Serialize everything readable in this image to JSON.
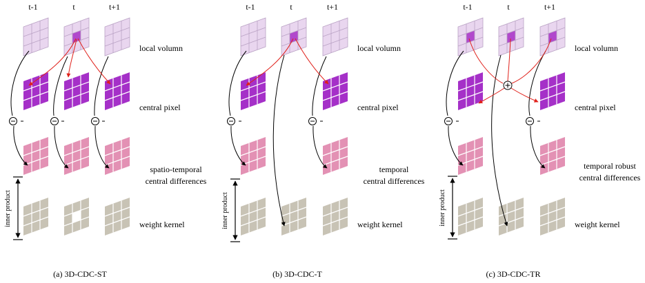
{
  "colors": {
    "local_volume": "#e9d6ef",
    "local_volume_center": "#b148cc",
    "central_pixel": "#a530c8",
    "central_difference": "#e391b4",
    "weight_kernel": "#c8c3b5",
    "grid_line": "#ffffff",
    "arrow_black": "#000000",
    "arrow_red": "#e0201a"
  },
  "panels": [
    {
      "id": "a",
      "frames": [
        "t-1",
        "t",
        "t+1"
      ],
      "labels": {
        "local_volume": "local volumn",
        "central_pixel": "central pixel",
        "differences_line1": "spatio-temporal",
        "differences_line2": "central differences",
        "weight_kernel": "weight kernel",
        "inner_product": "inner product"
      },
      "operator": "⊖",
      "caption": "(a) 3D-CDC-ST"
    },
    {
      "id": "b",
      "frames": [
        "t-1",
        "t",
        "t+1"
      ],
      "labels": {
        "local_volume": "local volumn",
        "central_pixel": "central pixel",
        "differences_line1": "temporal",
        "differences_line2": "central differences",
        "weight_kernel": "weight kernel",
        "inner_product": "inner product"
      },
      "operator": "⊖",
      "caption": "(b) 3D-CDC-T"
    },
    {
      "id": "c",
      "frames": [
        "t-1",
        "t",
        "t+1"
      ],
      "labels": {
        "local_volume": "local volumn",
        "central_pixel": "central pixel",
        "differences_line1": "temporal robust",
        "differences_line2": "central differences",
        "weight_kernel": "weight kernel",
        "inner_product": "inner product"
      },
      "operator": "⊖",
      "sum_operator": "⊕",
      "caption": "(c) 3D-CDC-TR"
    }
  ]
}
